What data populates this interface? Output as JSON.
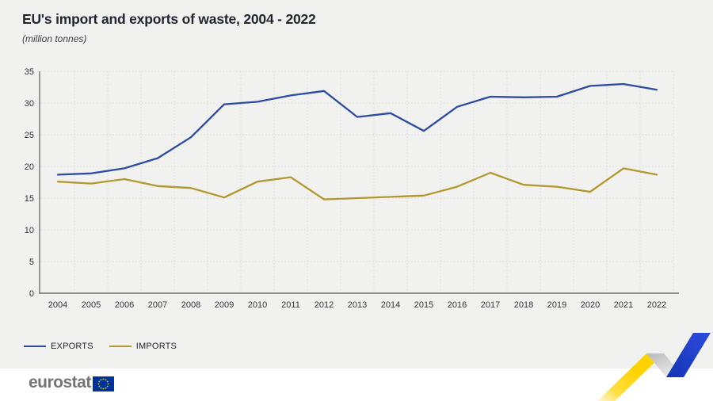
{
  "header": {
    "title": "EU's import and exports of waste, 2004 - 2022",
    "subtitle": "(million tonnes)"
  },
  "chart_data": {
    "type": "line",
    "x": [
      2004,
      2005,
      2006,
      2007,
      2008,
      2009,
      2010,
      2011,
      2012,
      2013,
      2014,
      2015,
      2016,
      2017,
      2018,
      2019,
      2020,
      2021,
      2022
    ],
    "series": [
      {
        "name": "EXPORTS",
        "color": "#2d4ba0",
        "values": [
          18.7,
          18.9,
          19.7,
          21.3,
          24.6,
          29.8,
          30.2,
          31.2,
          31.9,
          27.8,
          28.4,
          25.6,
          29.4,
          31.0,
          30.9,
          31.0,
          32.7,
          33.0,
          32.1
        ]
      },
      {
        "name": "IMPORTS",
        "color": "#b2992f",
        "values": [
          17.6,
          17.3,
          18.0,
          16.9,
          16.6,
          15.1,
          17.6,
          18.3,
          14.8,
          15.0,
          15.2,
          15.4,
          16.8,
          19.0,
          17.1,
          16.8,
          16.0,
          19.7,
          18.7
        ]
      }
    ],
    "ylim": [
      0,
      35
    ],
    "yticks": [
      0,
      5,
      10,
      15,
      20,
      25,
      30,
      35
    ],
    "grid": true,
    "legend_position": "bottom-left",
    "xlabel": "",
    "ylabel": "million tonnes"
  },
  "footer": {
    "brand": "eurostat"
  },
  "colors": {
    "background": "#f1f1ef",
    "footer_background": "#ffffff",
    "title_text": "#23262f",
    "axis": "#6f6f6f",
    "gridline": "#d9d9d4",
    "flag_blue": "#003399",
    "flag_star_yellow": "#ffcc00",
    "zigzag_yellow": "#ffd200",
    "zigzag_gray": "#c6c6c6",
    "zigzag_blue": "#2140cc"
  }
}
